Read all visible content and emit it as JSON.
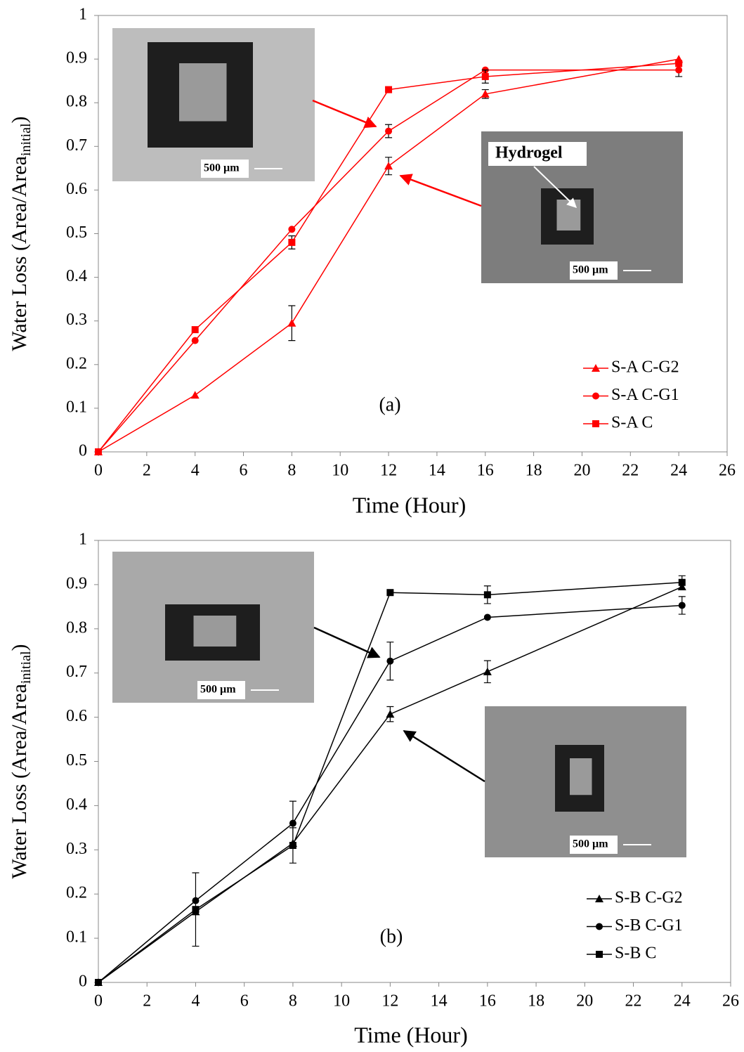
{
  "chart_data": [
    {
      "type": "line",
      "xlabel": "Time (Hour)",
      "ylabel": {
        "text": "Water Loss (Area/Area",
        "subscript": "initial",
        "suffix": ")"
      },
      "annotation": "(a)",
      "legend_loc": "lower right",
      "grid": false,
      "xlim": [
        0,
        26
      ],
      "xticks": [
        0,
        2,
        4,
        6,
        8,
        10,
        12,
        14,
        16,
        18,
        20,
        22,
        24,
        26
      ],
      "ylim": [
        0,
        1
      ],
      "yticks": [
        0,
        0.1,
        0.2,
        0.3,
        0.4,
        0.5,
        0.6,
        0.7,
        0.8,
        0.9,
        1
      ],
      "x": [
        0,
        4,
        8,
        12,
        16,
        24
      ],
      "series": [
        {
          "name": "S-A C-G2",
          "color": "#ff0000",
          "marker": "triangle",
          "values": [
            0,
            0.13,
            0.295,
            0.655,
            0.82,
            0.9
          ],
          "errors": [
            null,
            null,
            0.04,
            0.02,
            0.01,
            null
          ]
        },
        {
          "name": "S-A C-G1",
          "color": "#ff0000",
          "marker": "circle",
          "values": [
            0,
            0.255,
            0.51,
            0.735,
            0.875,
            0.875
          ],
          "errors": [
            null,
            null,
            null,
            0.015,
            null,
            0.015
          ]
        },
        {
          "name": "S-A C",
          "color": "#ff0000",
          "marker": "square",
          "values": [
            0,
            0.28,
            0.48,
            0.83,
            0.86,
            0.89
          ],
          "errors": [
            null,
            null,
            0.015,
            null,
            0.015,
            null
          ]
        }
      ],
      "insets": [
        {
          "scale_label": "500 µm"
        },
        {
          "label": "Hydrogel",
          "scale_label": "500 µm"
        }
      ]
    },
    {
      "type": "line",
      "xlabel": "Time (Hour)",
      "ylabel": {
        "text": "Water Loss (Area/Area",
        "subscript": "initial",
        "suffix": ")"
      },
      "annotation": "(b)",
      "legend_loc": "lower right",
      "grid": false,
      "xlim": [
        0,
        26
      ],
      "xticks": [
        0,
        2,
        4,
        6,
        8,
        10,
        12,
        14,
        16,
        18,
        20,
        22,
        24,
        26
      ],
      "ylim": [
        0,
        1
      ],
      "yticks": [
        0,
        0.1,
        0.2,
        0.3,
        0.4,
        0.5,
        0.6,
        0.7,
        0.8,
        0.9,
        1
      ],
      "x": [
        0,
        4,
        8,
        12,
        16,
        24
      ],
      "series": [
        {
          "name": "S-B C-G2",
          "color": "#000000",
          "marker": "triangle",
          "values": [
            0,
            0.16,
            0.315,
            0.607,
            0.703,
            0.895
          ],
          "errors": [
            null,
            null,
            null,
            0.017,
            0.025,
            null
          ]
        },
        {
          "name": "S-B C-G1",
          "color": "#000000",
          "marker": "circle",
          "values": [
            0,
            0.185,
            0.36,
            0.727,
            0.826,
            0.853
          ],
          "errors": [
            null,
            null,
            0.05,
            0.043,
            null,
            0.02
          ]
        },
        {
          "name": "S-B C",
          "color": "#000000",
          "marker": "square",
          "values": [
            0,
            0.165,
            0.31,
            0.882,
            0.877,
            0.905
          ],
          "errors": [
            null,
            0.083,
            0.04,
            null,
            0.02,
            0.015
          ]
        }
      ],
      "insets": [
        {
          "scale_label": "500 µm"
        },
        {
          "scale_label": "500 µm"
        }
      ]
    }
  ]
}
